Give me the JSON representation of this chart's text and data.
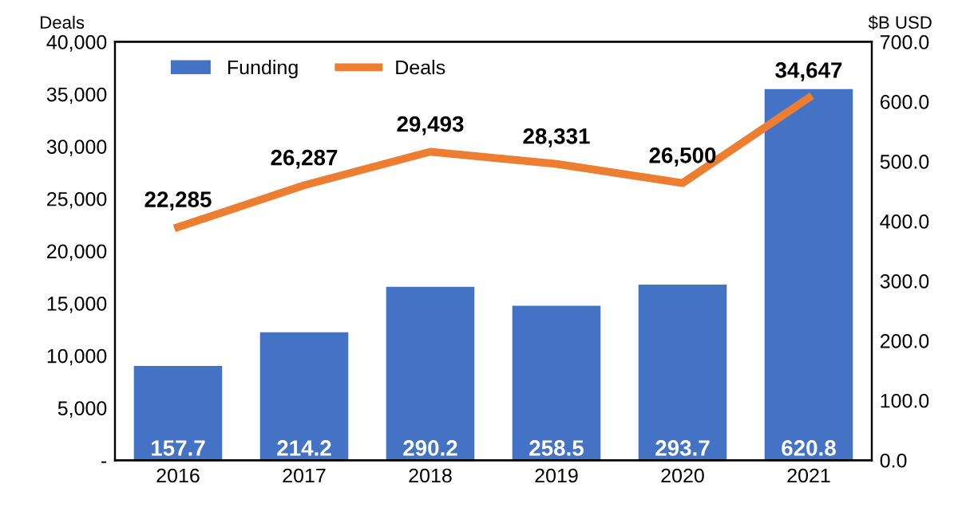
{
  "chart_data": {
    "type": "bar",
    "ylabel": "Deals",
    "y2label": "$B USD",
    "categories": [
      "2016",
      "2017",
      "2018",
      "2019",
      "2020",
      "2021"
    ],
    "series": [
      {
        "name": "Funding",
        "axis": "y2",
        "color": "#4472c4",
        "values": [
          157.7,
          214.2,
          290.2,
          258.5,
          293.7,
          620.8
        ],
        "value_labels": [
          "157.7",
          "214.2",
          "290.2",
          "258.5",
          "293.7",
          "620.8"
        ]
      },
      {
        "name": "Deals",
        "type": "line",
        "axis": "y",
        "color": "#ed7d31",
        "values": [
          22285,
          26287,
          29493,
          28331,
          26500,
          34647
        ],
        "value_labels": [
          "22,285",
          "26,287",
          "29,493",
          "28,331",
          "26,500",
          "34,647"
        ]
      }
    ],
    "ylim": [
      0,
      40000
    ],
    "yticks": [
      {
        "value": 0,
        "label": "-"
      },
      {
        "value": 5000,
        "label": "5,000"
      },
      {
        "value": 10000,
        "label": "10,000"
      },
      {
        "value": 15000,
        "label": "15,000"
      },
      {
        "value": 20000,
        "label": "20,000"
      },
      {
        "value": 25000,
        "label": "25,000"
      },
      {
        "value": 30000,
        "label": "30,000"
      },
      {
        "value": 35000,
        "label": "35,000"
      },
      {
        "value": 40000,
        "label": "40,000"
      }
    ],
    "y2lim": [
      0,
      700
    ],
    "y2ticks": [
      {
        "value": 0,
        "label": "0.0"
      },
      {
        "value": 100,
        "label": "100.0"
      },
      {
        "value": 200,
        "label": "200.0"
      },
      {
        "value": 300,
        "label": "300.0"
      },
      {
        "value": 400,
        "label": "400.0"
      },
      {
        "value": 500,
        "label": "500.0"
      },
      {
        "value": 600,
        "label": "600.0"
      },
      {
        "value": 700,
        "label": "700.0"
      }
    ],
    "legend": "top left",
    "grid": false,
    "marker": "none",
    "line_style": "solid"
  }
}
